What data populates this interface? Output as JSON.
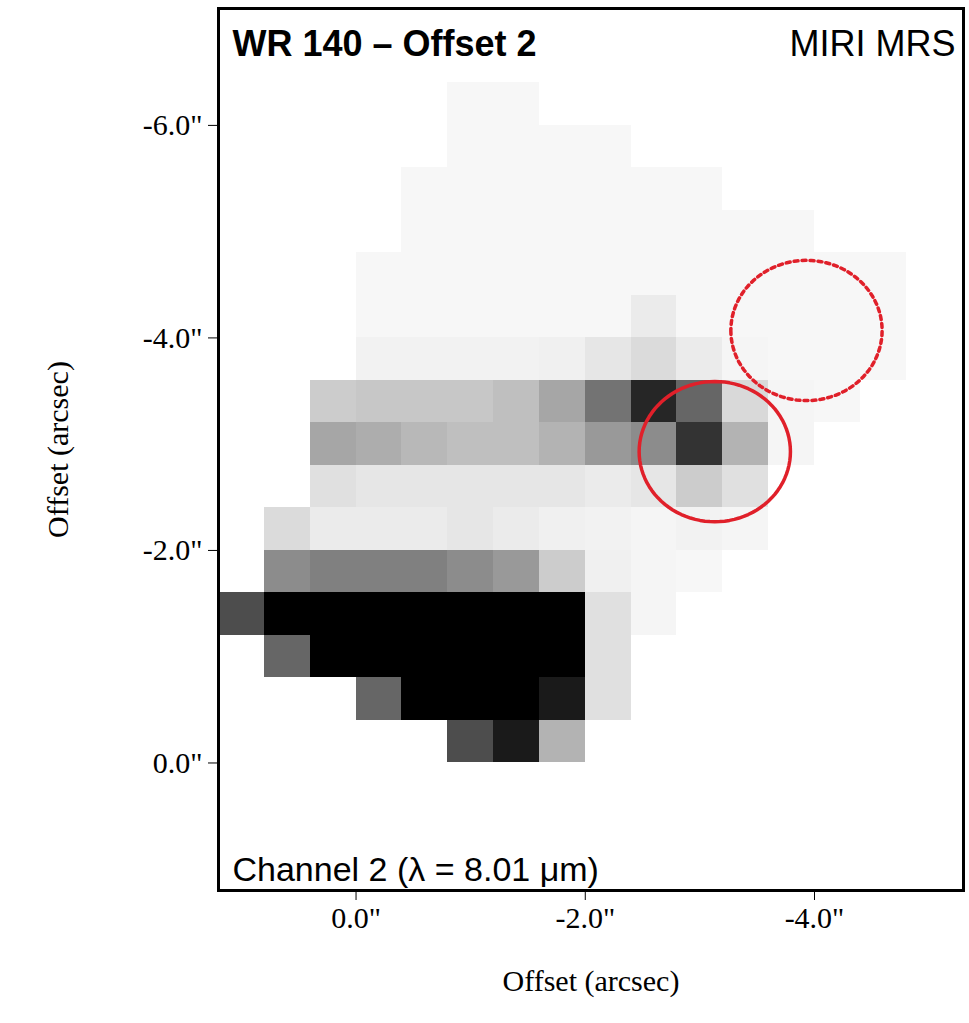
{
  "chart_data": {
    "type": "heatmap",
    "title": "WR 140 – Offset 2",
    "subtitle": "MIRI MRS",
    "caption": "Channel 2 (λ = 8.01 μm)",
    "x_label": "Offset (arcsec)",
    "y_label": "Offset (arcsec)",
    "xlim": [
      1.2,
      -5.3
    ],
    "ylim": [
      1.2,
      -7.1
    ],
    "xticks": [
      {
        "value": 0,
        "label": "0.0\""
      },
      {
        "value": -2,
        "label": "-2.0\""
      },
      {
        "value": -4,
        "label": "-4.0\""
      }
    ],
    "yticks": [
      {
        "value": 0,
        "label": "0.0\""
      },
      {
        "value": -2,
        "label": "-2.0\""
      },
      {
        "value": -4,
        "label": "-4.0\""
      },
      {
        "value": -6,
        "label": "-6.0\""
      }
    ],
    "x": [
      1.0,
      0.6,
      0.2,
      -0.2,
      -0.6,
      -1.0,
      -1.4,
      -1.8,
      -2.2,
      -2.6,
      -3.0,
      -3.4,
      -3.8,
      -4.2,
      -4.6,
      -5.0
    ],
    "y": [
      1.0,
      0.6,
      0.2,
      -0.2,
      -0.6,
      -1.0,
      -1.4,
      -1.8,
      -2.2,
      -2.6,
      -3.0,
      -3.4,
      -3.8,
      -4.2,
      -4.6,
      -5.0,
      -5.4,
      -5.8,
      -6.2,
      -6.6,
      -7.0
    ],
    "values": [
      [
        null,
        null,
        null,
        null,
        null,
        null,
        null,
        null,
        null,
        null,
        null,
        null,
        null,
        null,
        null,
        null
      ],
      [
        null,
        null,
        null,
        null,
        null,
        null,
        null,
        null,
        null,
        null,
        null,
        null,
        null,
        null,
        null,
        null
      ],
      [
        null,
        null,
        null,
        null,
        null,
        null,
        null,
        null,
        null,
        null,
        null,
        null,
        null,
        null,
        null,
        null
      ],
      [
        null,
        null,
        null,
        null,
        null,
        70,
        90,
        30,
        null,
        null,
        null,
        null,
        null,
        null,
        null,
        null
      ],
      [
        null,
        null,
        null,
        60,
        100,
        100,
        100,
        90,
        12,
        null,
        null,
        null,
        null,
        null,
        null,
        null
      ],
      [
        null,
        60,
        100,
        100,
        100,
        100,
        100,
        100,
        12,
        null,
        null,
        null,
        null,
        null,
        null,
        null
      ],
      [
        70,
        100,
        100,
        100,
        100,
        100,
        100,
        100,
        12,
        4,
        null,
        null,
        null,
        null,
        null,
        null
      ],
      [
        null,
        45,
        50,
        50,
        50,
        45,
        40,
        20,
        6,
        4,
        3,
        null,
        null,
        null,
        null,
        null
      ],
      [
        null,
        14,
        8,
        8,
        8,
        10,
        8,
        6,
        5,
        4,
        5,
        4,
        null,
        null,
        null,
        null
      ],
      [
        null,
        null,
        12,
        10,
        10,
        10,
        10,
        10,
        8,
        10,
        20,
        12,
        null,
        null,
        null,
        null
      ],
      [
        null,
        null,
        35,
        32,
        28,
        25,
        25,
        30,
        40,
        45,
        80,
        30,
        4,
        null,
        null,
        null
      ],
      [
        null,
        null,
        20,
        22,
        22,
        22,
        25,
        35,
        55,
        85,
        60,
        15,
        4,
        3,
        null,
        null
      ],
      [
        null,
        null,
        null,
        5,
        5,
        5,
        5,
        6,
        10,
        14,
        8,
        4,
        3,
        3,
        3,
        null
      ],
      [
        null,
        null,
        null,
        3,
        3,
        3,
        3,
        3,
        3,
        8,
        3,
        3,
        3,
        3,
        3,
        null
      ],
      [
        null,
        null,
        null,
        3,
        3,
        3,
        3,
        3,
        3,
        3,
        3,
        3,
        3,
        3,
        3,
        null
      ],
      [
        null,
        null,
        null,
        null,
        3,
        3,
        3,
        3,
        3,
        3,
        3,
        3,
        3,
        null,
        null,
        null
      ],
      [
        null,
        null,
        null,
        null,
        3,
        3,
        3,
        3,
        3,
        3,
        3,
        null,
        null,
        null,
        null,
        null
      ],
      [
        null,
        null,
        null,
        null,
        null,
        3,
        3,
        3,
        3,
        null,
        null,
        null,
        null,
        null,
        null,
        null
      ],
      [
        null,
        null,
        null,
        null,
        null,
        3,
        3,
        null,
        null,
        null,
        null,
        null,
        null,
        null,
        null,
        null
      ],
      [
        null,
        null,
        null,
        null,
        null,
        null,
        null,
        null,
        null,
        null,
        null,
        null,
        null,
        null,
        null,
        null
      ],
      [
        null,
        null,
        null,
        null,
        null,
        null,
        null,
        null,
        null,
        null,
        null,
        null,
        null,
        null,
        null,
        null
      ]
    ],
    "color_range": [
      0,
      100
    ],
    "apertures": [
      {
        "x": -3.13,
        "y": -2.93,
        "r": 0.66,
        "color": "#e0202a",
        "line_style": "solid"
      },
      {
        "x": -3.93,
        "y": -4.07,
        "r": 0.66,
        "color": "#e0202a",
        "line_style": "dotted"
      }
    ]
  }
}
